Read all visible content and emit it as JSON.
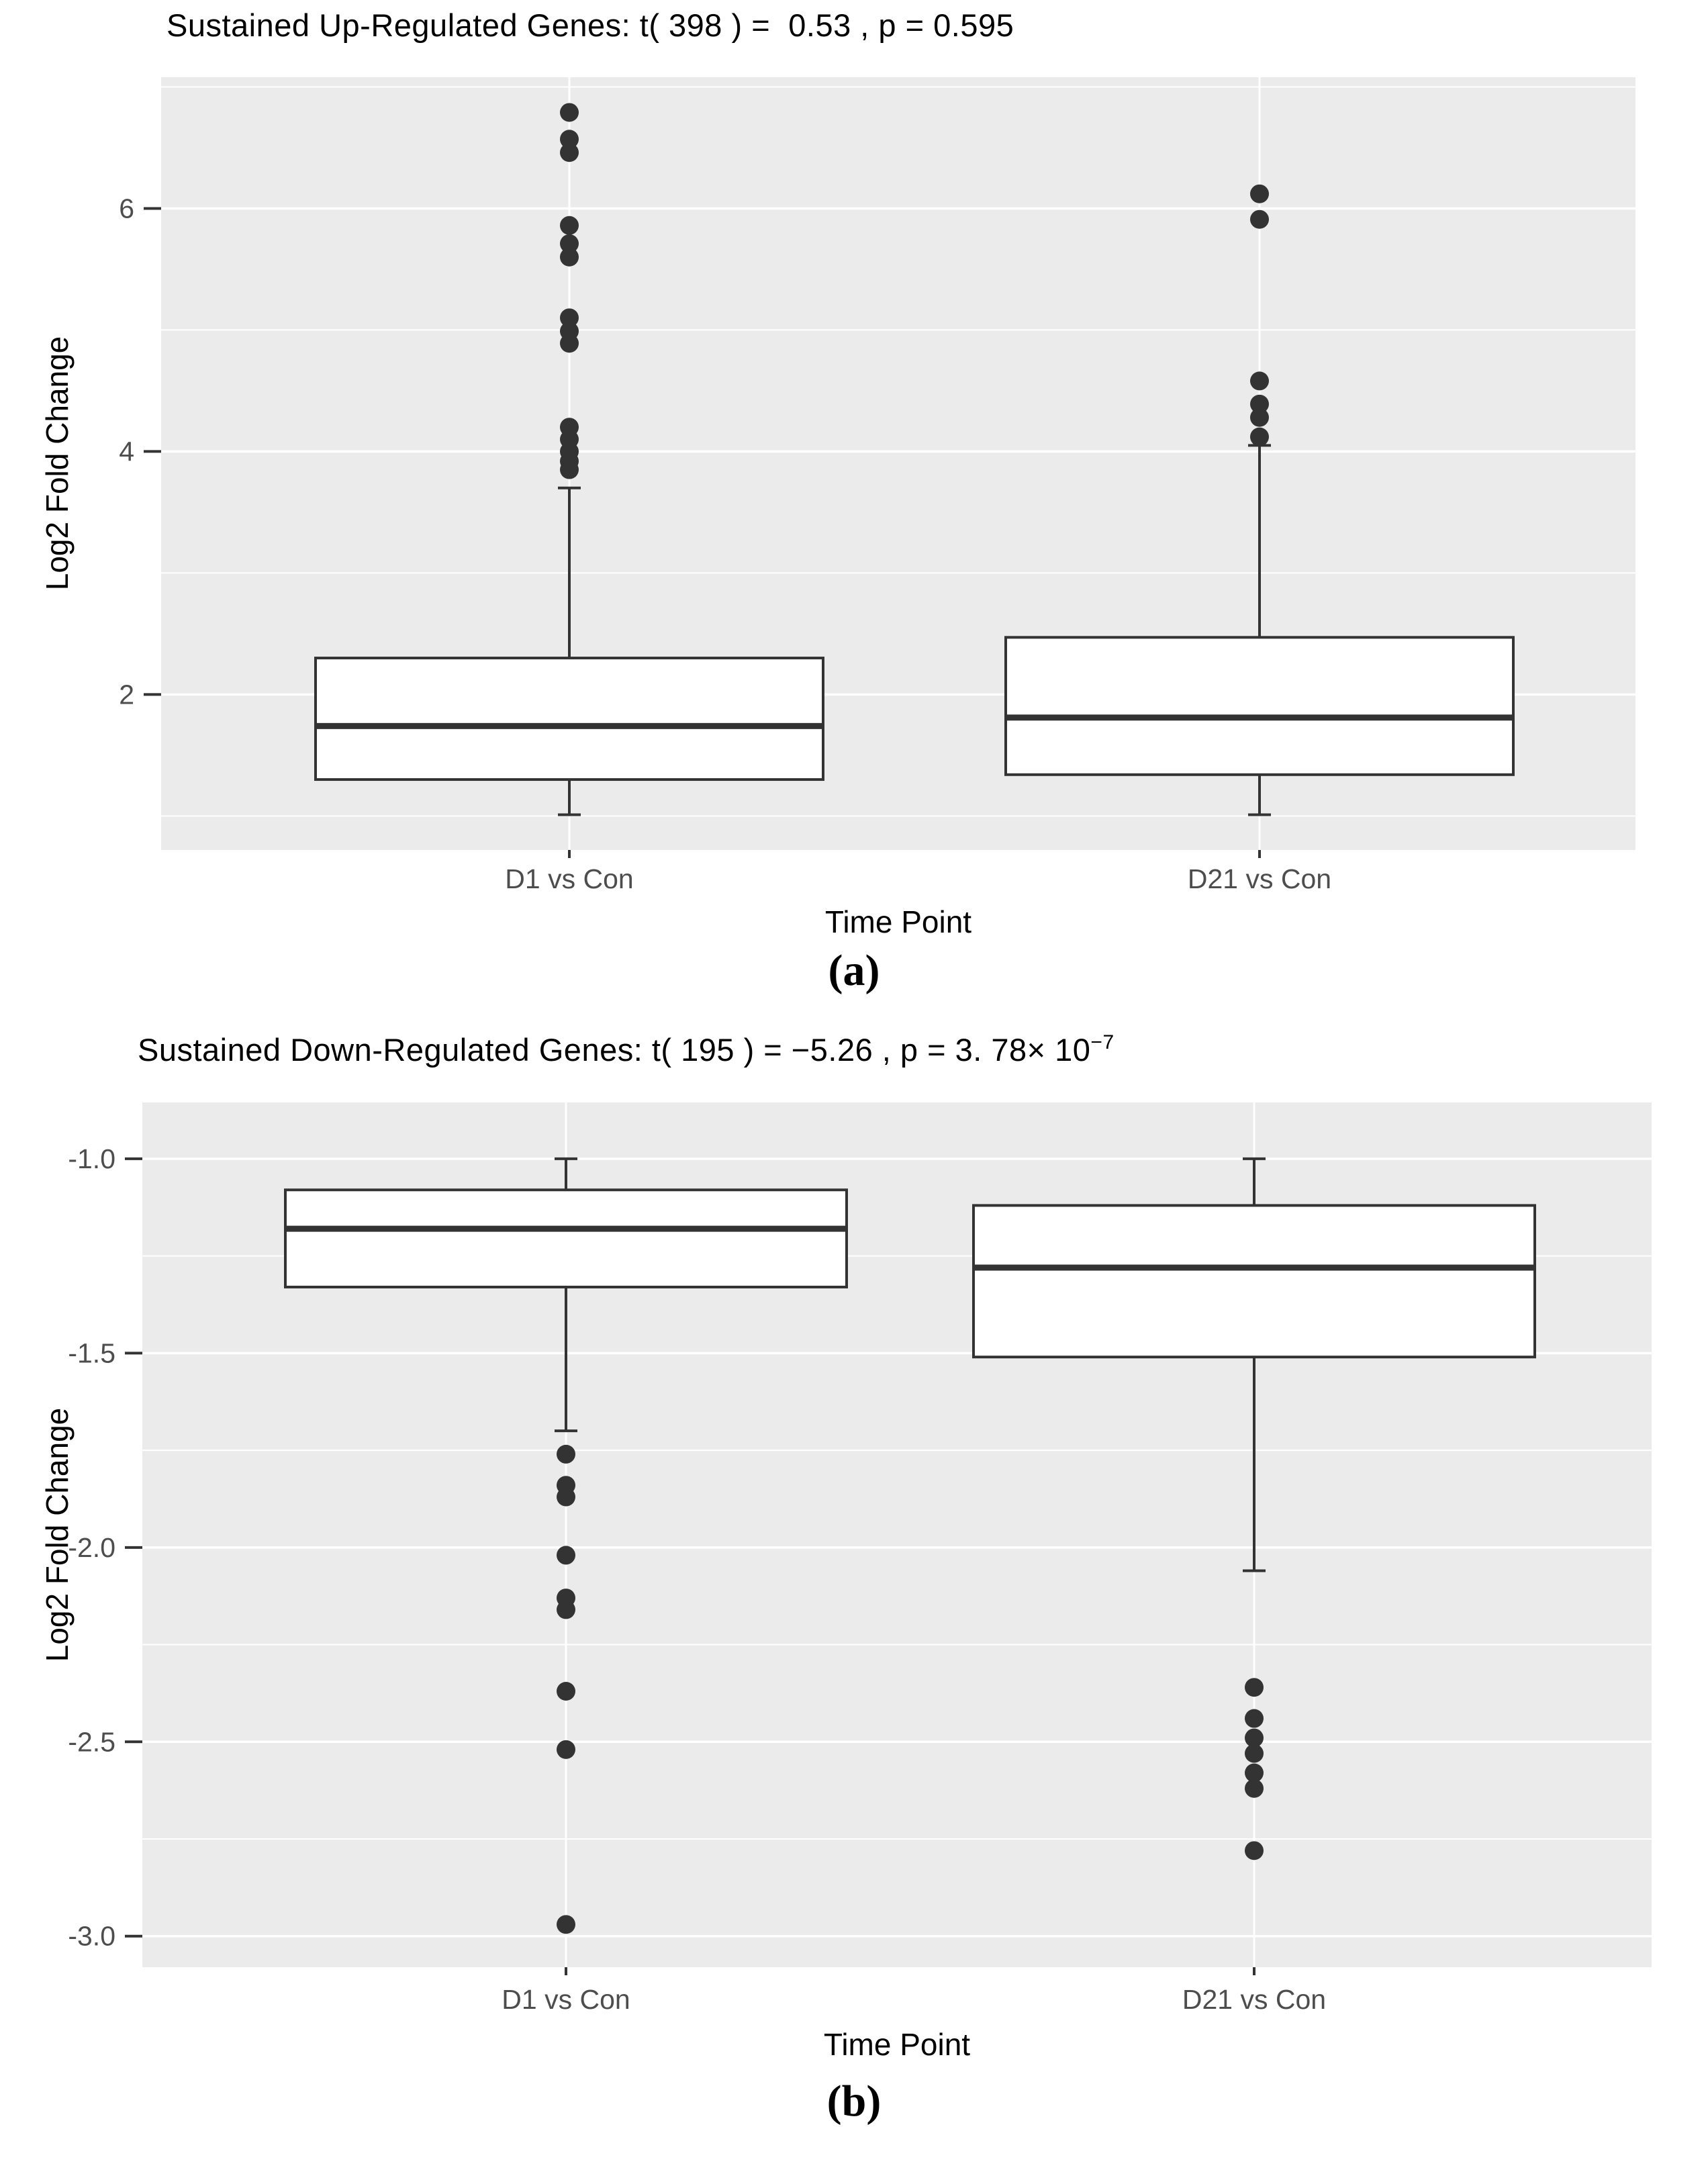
{
  "figure": {
    "captions": [
      {
        "pre": "(",
        "letter": "a",
        "post": ")"
      },
      {
        "pre": "(",
        "letter": "b",
        "post": ")"
      }
    ],
    "colors": {
      "panel_bg": "#ebebeb",
      "grid": "#ffffff",
      "box_stroke": "#333333",
      "box_fill": "#ffffff",
      "outlier": "#333333",
      "tick_text": "#4d4d4d",
      "axis_tick": "#333333",
      "title_text": "#000000"
    }
  },
  "chart_data": [
    {
      "type": "boxplot",
      "panel": "a",
      "title": "Sustained Up-Regulated Genes: t( 398 ) =  0.53 , p = 0.595",
      "title_sup": "",
      "xlabel": "Time Point",
      "ylabel": "Log2 Fold Change",
      "categories": [
        "D1 vs Con",
        "D21 vs Con"
      ],
      "y_ticks": [
        {
          "v": 6,
          "label": "6"
        },
        {
          "v": 4,
          "label": "4"
        },
        {
          "v": 2,
          "label": "2"
        }
      ],
      "y_minor_ticks": [
        7,
        5,
        3,
        1
      ],
      "ylim": [
        0.72,
        7.08
      ],
      "grid": true,
      "legend": "none",
      "series": [
        {
          "name": "D1 vs Con",
          "whisker_low": 1.01,
          "q1": 1.3,
          "median": 1.74,
          "q3": 2.3,
          "whisker_high": 3.7,
          "outliers": [
            6.79,
            6.57,
            6.46,
            5.86,
            5.71,
            5.6,
            5.1,
            4.99,
            4.89,
            4.2,
            4.1,
            4.0,
            3.92,
            3.85
          ]
        },
        {
          "name": "D21 vs Con",
          "whisker_low": 1.01,
          "q1": 1.34,
          "median": 1.81,
          "q3": 2.47,
          "whisker_high": 4.05,
          "outliers": [
            6.12,
            5.91,
            4.58,
            4.39,
            4.28,
            4.12
          ]
        }
      ]
    },
    {
      "type": "boxplot",
      "panel": "b",
      "title": "Sustained Down-Regulated Genes: t( 195 ) = −5.26 , p = 3. 78× 10",
      "title_sup": "−7",
      "xlabel": "Time Point",
      "ylabel": "Log2 Fold Change",
      "categories": [
        "D1 vs Con",
        "D21 vs Con"
      ],
      "y_ticks": [
        {
          "v": -1.0,
          "label": "-1.0"
        },
        {
          "v": -1.5,
          "label": "-1.5"
        },
        {
          "v": -2.0,
          "label": "-2.0"
        },
        {
          "v": -2.5,
          "label": "-2.5"
        },
        {
          "v": -3.0,
          "label": "-3.0"
        }
      ],
      "y_minor_ticks": [
        -1.25,
        -1.75,
        -2.25,
        -2.75
      ],
      "ylim": [
        -3.08,
        -0.855
      ],
      "grid": true,
      "legend": "none",
      "series": [
        {
          "name": "D1 vs Con",
          "whisker_low": -1.7,
          "q1": -1.33,
          "median": -1.18,
          "q3": -1.08,
          "whisker_high": -1.0,
          "outliers": [
            -1.76,
            -1.84,
            -1.87,
            -2.02,
            -2.13,
            -2.16,
            -2.37,
            -2.52,
            -2.97
          ]
        },
        {
          "name": "D21 vs Con",
          "whisker_low": -2.06,
          "q1": -1.51,
          "median": -1.28,
          "q3": -1.12,
          "whisker_high": -1.0,
          "outliers": [
            -2.36,
            -2.44,
            -2.49,
            -2.53,
            -2.58,
            -2.62,
            -2.78
          ]
        }
      ]
    }
  ]
}
